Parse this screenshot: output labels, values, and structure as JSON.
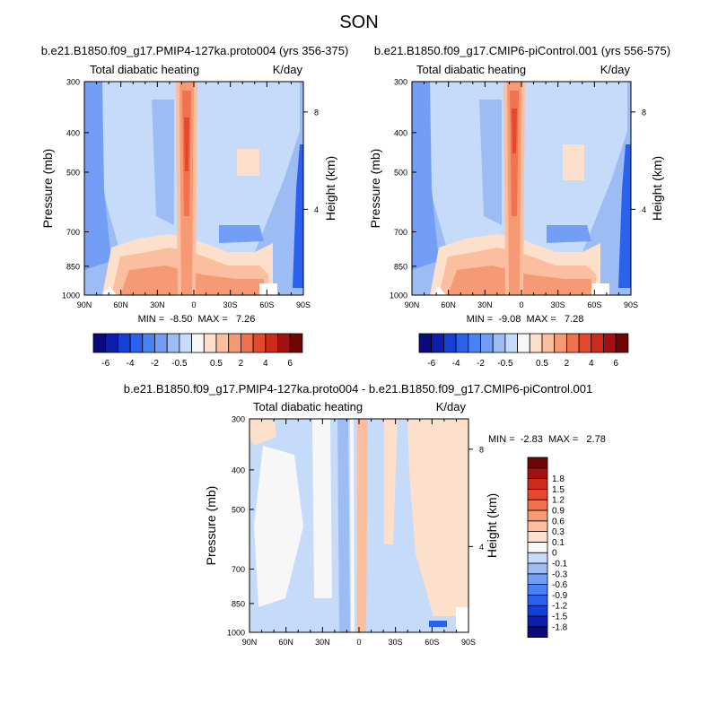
{
  "figure_title": "SON",
  "panels": [
    {
      "title": "b.e21.B1850.f09_g17.PMIP4-127ka.proto004 (yrs 356-375)",
      "left_label": "Total diabatic heating",
      "right_label": "K/day",
      "ylabel": "Pressure (mb)",
      "ylabel_right": "Height (km)",
      "stats": "MIN =  -8.50  MAX =   7.26"
    },
    {
      "title": "b.e21.B1850.f09_g17.CMIP6-piControl.001 (yrs 556-575)",
      "left_label": "Total diabatic heating",
      "right_label": "K/day",
      "ylabel": "Pressure (mb)",
      "ylabel_right": "Height (km)",
      "stats": "MIN =  -9.08  MAX =   7.28"
    },
    {
      "title": "b.e21.B1850.f09_g17.PMIP4-127ka.proto004 - b.e21.B1850.f09_g17.CMIP6-piControl.001",
      "left_label": "Total diabatic heating",
      "right_label": "K/day",
      "ylabel": "Pressure (mb)",
      "ylabel_right": "Height (km)",
      "stats": "MIN =  -2.83  MAX =   2.78"
    }
  ],
  "axes": {
    "pressure_ticks": [
      "300",
      "400",
      "500",
      "700",
      "850",
      "1000"
    ],
    "pressure_values": [
      300,
      400,
      500,
      700,
      850,
      1000
    ],
    "height_ticks": [
      "8",
      "4"
    ],
    "height_values": [
      8,
      4
    ],
    "lat_ticks": [
      "90N",
      "60N",
      "30N",
      "0",
      "30S",
      "60S",
      "90S"
    ],
    "lat_values": [
      90,
      60,
      30,
      0,
      -30,
      -60,
      -90
    ],
    "y_scale": "log-pressure"
  },
  "colorbar_main": {
    "colors": [
      "#0a0a7a",
      "#0c1eaa",
      "#1440d6",
      "#2a62ee",
      "#4a82f4",
      "#729ff5",
      "#9dbcf3",
      "#c5dbf9",
      "#f7f7f7",
      "#fde0cc",
      "#fbbfa0",
      "#f69a76",
      "#f0724f",
      "#e4492e",
      "#cc2a1a",
      "#a21010",
      "#6e0606"
    ],
    "labels": [
      "-6",
      "-4",
      "-2",
      "-0.5",
      "0.5",
      "2",
      "4",
      "6"
    ]
  },
  "colorbar_diff": {
    "colors": [
      "#0a0a7a",
      "#0c1eaa",
      "#1440d6",
      "#2a62ee",
      "#4a82f4",
      "#729ff5",
      "#9dbcf3",
      "#c5dbf9",
      "#f7f7f7",
      "#fde0cc",
      "#fbbfa0",
      "#f69a76",
      "#f0724f",
      "#e4492e",
      "#cc2a1a",
      "#a21010",
      "#6e0606"
    ],
    "labels": [
      "-1.8",
      "-1.5",
      "-1.2",
      "-0.9",
      "-0.6",
      "-0.3",
      "-0.1",
      "0",
      "0.1",
      "0.3",
      "0.6",
      "0.9",
      "1.2",
      "1.5",
      "1.8"
    ]
  },
  "chart_data": [
    {
      "type": "heatmap",
      "title": "b.e21.B1850.f09_g17.PMIP4-127ka.proto004 (yrs 356-375)",
      "xlabel": "",
      "ylabel": "Pressure (mb)",
      "units": "K/day",
      "x": [
        90,
        60,
        30,
        0,
        -30,
        -60,
        -90
      ],
      "y": [
        300,
        400,
        500,
        700,
        850,
        1000
      ],
      "min": -8.5,
      "max": 7.26
    },
    {
      "type": "heatmap",
      "title": "b.e21.B1850.f09_g17.CMIP6-piControl.001 (yrs 556-575)",
      "xlabel": "",
      "ylabel": "Pressure (mb)",
      "units": "K/day",
      "x": [
        90,
        60,
        30,
        0,
        -30,
        -60,
        -90
      ],
      "y": [
        300,
        400,
        500,
        700,
        850,
        1000
      ],
      "min": -9.08,
      "max": 7.28
    },
    {
      "type": "heatmap",
      "title": "b.e21.B1850.f09_g17.PMIP4-127ka.proto004 - b.e21.B1850.f09_g17.CMIP6-piControl.001",
      "xlabel": "",
      "ylabel": "Pressure (mb)",
      "units": "K/day",
      "x": [
        90,
        60,
        30,
        0,
        -30,
        -60,
        -90
      ],
      "y": [
        300,
        400,
        500,
        700,
        850,
        1000
      ],
      "min": -2.83,
      "max": 2.78
    }
  ]
}
